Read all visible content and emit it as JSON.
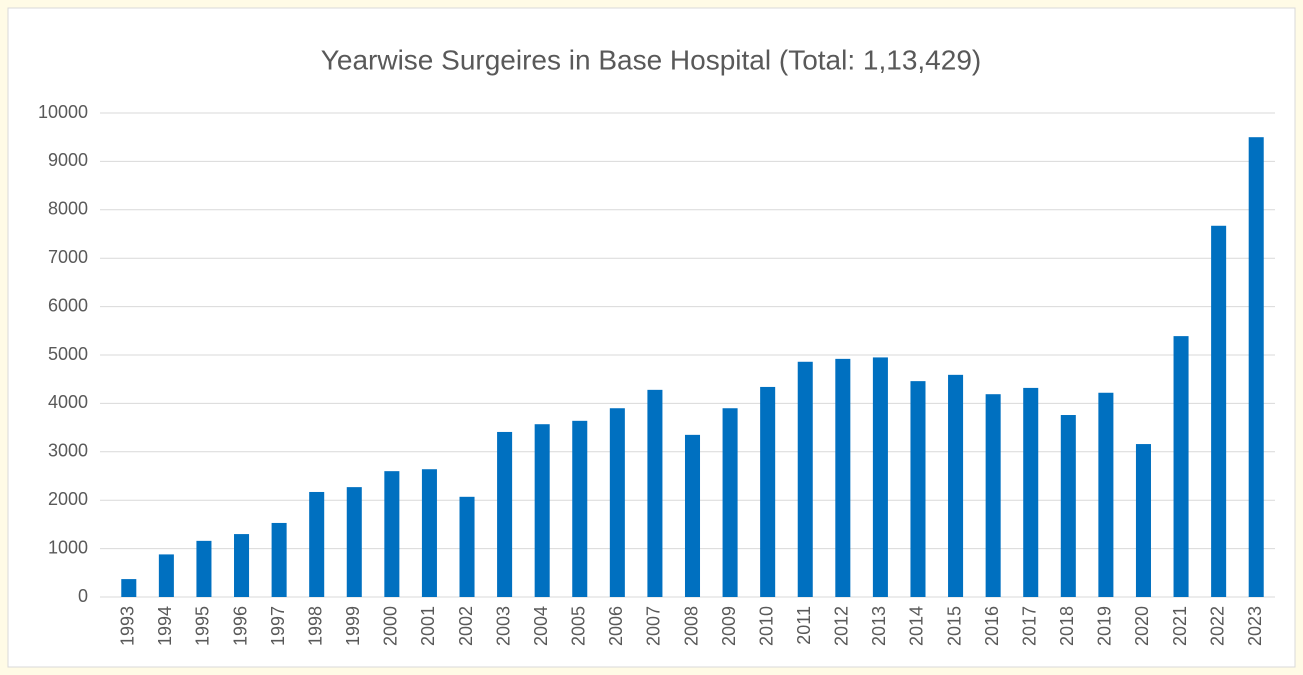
{
  "chart_data": {
    "type": "bar",
    "title": "Yearwise Surgeires in Base Hospital (Total: 1,13,429)",
    "categories": [
      "1993",
      "1994",
      "1995",
      "1996",
      "1997",
      "1998",
      "1999",
      "2000",
      "2001",
      "2002",
      "2003",
      "2004",
      "2005",
      "2006",
      "2007",
      "2008",
      "2009",
      "2010",
      "2011",
      "2012",
      "2013",
      "2014",
      "2015",
      "2016",
      "2017",
      "2018",
      "2019",
      "2020",
      "2021",
      "2022",
      "2023"
    ],
    "values": [
      370,
      880,
      1160,
      1300,
      1530,
      2170,
      2270,
      2600,
      2640,
      2070,
      3410,
      3570,
      3640,
      3900,
      4280,
      3350,
      3900,
      4340,
      4860,
      4920,
      4950,
      4460,
      4590,
      4190,
      4320,
      3760,
      4220,
      3160,
      5390,
      7670,
      9500
    ],
    "color": "#0070c0",
    "ylim": [
      0,
      10000
    ],
    "yticks": [
      0,
      1000,
      2000,
      3000,
      4000,
      5000,
      6000,
      7000,
      8000,
      9000,
      10000
    ],
    "grid": true
  }
}
